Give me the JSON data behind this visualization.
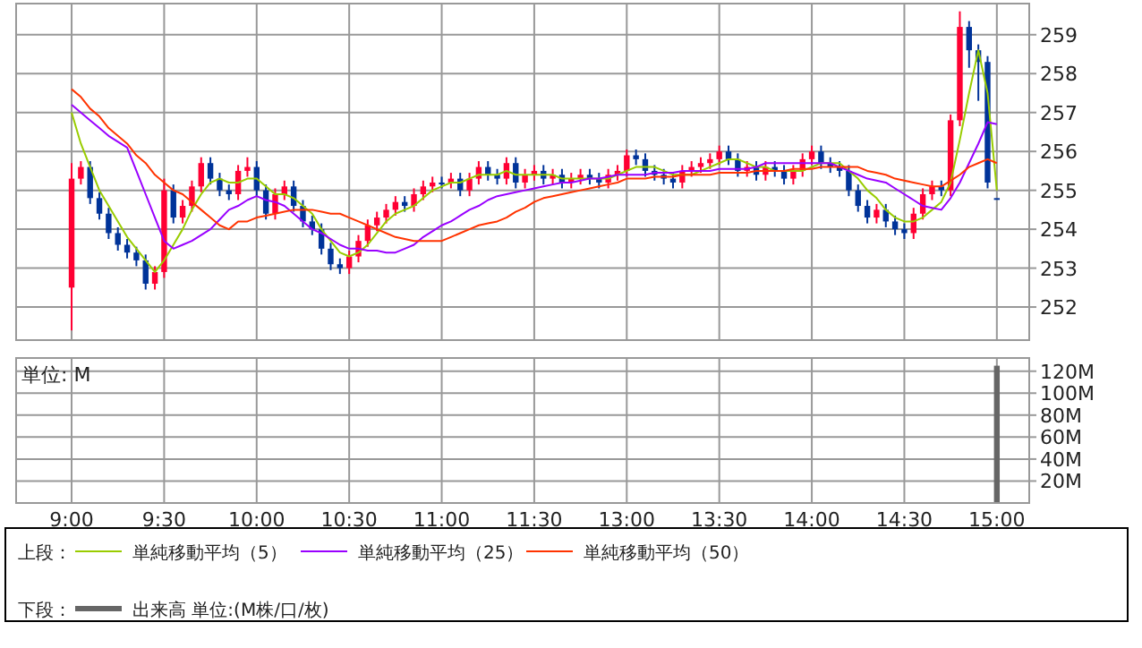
{
  "chart_data": [
    {
      "type": "candlestick",
      "categories": [
        null,
        null,
        null,
        null,
        null,
        null,
        null,
        null,
        null,
        null,
        null,
        null,
        null,
        null,
        null,
        null,
        null,
        null,
        null,
        null,
        null,
        null,
        null,
        null,
        null,
        null,
        null,
        null,
        null,
        null,
        null,
        null,
        null,
        null,
        null,
        null,
        null,
        null,
        null,
        null,
        null,
        null,
        null,
        null,
        null,
        null,
        null,
        null,
        null,
        null,
        null,
        null,
        null,
        null,
        null,
        null,
        null,
        null,
        null,
        null,
        null,
        null,
        null,
        null,
        null,
        null,
        null,
        null,
        null,
        null,
        null,
        null,
        null,
        null,
        null,
        null,
        null,
        null,
        null,
        null,
        null,
        null,
        null,
        null,
        null,
        null,
        null,
        null,
        null,
        null,
        null,
        null,
        null,
        null,
        null,
        null,
        null,
        null,
        null,
        null,
        null
      ],
      "ohlc": [
        [
          252.5,
          255.7,
          251.4,
          255.3
        ],
        [
          255.3,
          255.75,
          255.15,
          255.6
        ],
        [
          255.6,
          255.75,
          254.65,
          254.8
        ],
        [
          254.8,
          254.95,
          254.25,
          254.4
        ],
        [
          254.4,
          254.55,
          253.75,
          253.9
        ],
        [
          253.9,
          254.05,
          253.45,
          253.6
        ],
        [
          253.6,
          253.75,
          253.25,
          253.4
        ],
        [
          253.4,
          253.55,
          253.05,
          253.2
        ],
        [
          253.2,
          253.35,
          252.45,
          252.6
        ],
        [
          252.6,
          253.05,
          252.45,
          252.9
        ],
        [
          252.9,
          255.3,
          252.75,
          255.0
        ],
        [
          255.0,
          255.15,
          254.15,
          254.3
        ],
        [
          254.3,
          254.75,
          254.15,
          254.6
        ],
        [
          254.6,
          255.25,
          254.45,
          255.1
        ],
        [
          255.1,
          255.85,
          254.95,
          255.7
        ],
        [
          255.7,
          255.85,
          255.15,
          255.3
        ],
        [
          255.3,
          255.45,
          254.85,
          255.0
        ],
        [
          255.0,
          255.15,
          254.75,
          254.9
        ],
        [
          254.9,
          255.65,
          254.75,
          255.5
        ],
        [
          255.5,
          255.85,
          255.35,
          255.6
        ],
        [
          255.6,
          255.75,
          254.85,
          255.0
        ],
        [
          255.0,
          255.15,
          254.25,
          254.4
        ],
        [
          254.4,
          255.05,
          254.25,
          254.9
        ],
        [
          254.9,
          255.25,
          254.75,
          255.1
        ],
        [
          255.1,
          255.25,
          254.45,
          254.6
        ],
        [
          254.6,
          254.75,
          254.05,
          254.2
        ],
        [
          254.2,
          254.35,
          253.85,
          254.0
        ],
        [
          254.0,
          254.15,
          253.35,
          253.5
        ],
        [
          253.5,
          253.65,
          252.95,
          253.1
        ],
        [
          253.1,
          253.25,
          252.85,
          253.0
        ],
        [
          253.0,
          253.45,
          252.85,
          253.3
        ],
        [
          253.3,
          253.85,
          253.15,
          253.7
        ],
        [
          253.7,
          254.25,
          253.55,
          254.1
        ],
        [
          254.1,
          254.45,
          253.95,
          254.3
        ],
        [
          254.3,
          254.65,
          254.15,
          254.5
        ],
        [
          254.5,
          254.85,
          254.35,
          254.7
        ],
        [
          254.7,
          254.85,
          254.45,
          254.6
        ],
        [
          254.6,
          255.05,
          254.45,
          254.9
        ],
        [
          254.9,
          255.25,
          254.75,
          255.1
        ],
        [
          255.1,
          255.35,
          254.95,
          255.2
        ],
        [
          255.2,
          255.35,
          255.05,
          255.2
        ],
        [
          255.2,
          255.45,
          255.05,
          255.3
        ],
        [
          255.3,
          255.45,
          254.85,
          255.0
        ],
        [
          255.0,
          255.45,
          254.85,
          255.3
        ],
        [
          255.3,
          255.75,
          255.15,
          255.6
        ],
        [
          255.6,
          255.75,
          255.25,
          255.4
        ],
        [
          255.4,
          255.55,
          255.15,
          255.3
        ],
        [
          255.3,
          255.85,
          255.15,
          255.7
        ],
        [
          255.7,
          255.85,
          255.05,
          255.2
        ],
        [
          255.2,
          255.55,
          255.05,
          255.4
        ],
        [
          255.4,
          255.65,
          255.25,
          255.5
        ],
        [
          255.5,
          255.65,
          255.15,
          255.3
        ],
        [
          255.3,
          255.55,
          255.15,
          255.4
        ],
        [
          255.4,
          255.55,
          255.05,
          255.2
        ],
        [
          255.2,
          255.45,
          255.05,
          255.3
        ],
        [
          255.3,
          255.55,
          255.15,
          255.4
        ],
        [
          255.4,
          255.55,
          255.15,
          255.3
        ],
        [
          255.3,
          255.45,
          255.05,
          255.2
        ],
        [
          255.2,
          255.55,
          255.05,
          255.4
        ],
        [
          255.4,
          255.65,
          255.25,
          255.5
        ],
        [
          255.5,
          256.05,
          255.35,
          255.9
        ],
        [
          255.9,
          256.05,
          255.65,
          255.8
        ],
        [
          255.8,
          255.95,
          255.35,
          255.5
        ],
        [
          255.5,
          255.65,
          255.25,
          255.4
        ],
        [
          255.4,
          255.55,
          255.15,
          255.3
        ],
        [
          255.3,
          255.45,
          255.05,
          255.2
        ],
        [
          255.2,
          255.65,
          255.05,
          255.5
        ],
        [
          255.5,
          255.75,
          255.35,
          255.6
        ],
        [
          255.6,
          255.85,
          255.45,
          255.7
        ],
        [
          255.7,
          255.95,
          255.55,
          255.8
        ],
        [
          255.8,
          256.15,
          255.65,
          256.0
        ],
        [
          256.0,
          256.15,
          255.65,
          255.8
        ],
        [
          255.8,
          255.95,
          255.35,
          255.5
        ],
        [
          255.5,
          255.75,
          255.35,
          255.6
        ],
        [
          255.6,
          255.75,
          255.25,
          255.4
        ],
        [
          255.4,
          255.75,
          255.25,
          255.6
        ],
        [
          255.6,
          255.75,
          255.35,
          255.5
        ],
        [
          255.5,
          255.65,
          255.15,
          255.3
        ],
        [
          255.3,
          255.65,
          255.15,
          255.5
        ],
        [
          255.5,
          255.95,
          255.35,
          255.8
        ],
        [
          255.8,
          256.15,
          255.65,
          256.0
        ],
        [
          256.0,
          256.15,
          255.55,
          255.7
        ],
        [
          255.7,
          255.85,
          255.45,
          255.6
        ],
        [
          255.6,
          255.75,
          255.35,
          255.5
        ],
        [
          255.5,
          255.65,
          254.85,
          255.0
        ],
        [
          255.0,
          255.15,
          254.45,
          254.6
        ],
        [
          254.6,
          254.75,
          254.15,
          254.3
        ],
        [
          254.3,
          254.65,
          254.15,
          254.5
        ],
        [
          254.5,
          254.65,
          254.05,
          254.2
        ],
        [
          254.2,
          254.35,
          253.85,
          254.0
        ],
        [
          254.0,
          254.15,
          253.75,
          253.9
        ],
        [
          253.9,
          254.55,
          253.75,
          254.4
        ],
        [
          254.4,
          255.05,
          254.25,
          254.9
        ],
        [
          254.9,
          255.25,
          254.75,
          255.1
        ],
        [
          255.1,
          255.25,
          254.85,
          255.0
        ],
        [
          255.0,
          256.95,
          254.85,
          256.8
        ],
        [
          256.8,
          259.6,
          256.65,
          259.2
        ],
        [
          259.2,
          259.35,
          258.15,
          258.6
        ],
        [
          258.6,
          258.75,
          257.3,
          258.3
        ],
        [
          258.3,
          258.45,
          255.05,
          255.2
        ],
        [
          254.8,
          254.8,
          254.8,
          254.8
        ]
      ],
      "colors": [
        "#ff0033",
        "#ff0033",
        "#003399",
        "#003399",
        "#003399",
        "#003399",
        "#003399",
        "#003399",
        "#003399",
        "#ff0033",
        "#ff0033",
        "#003399",
        "#ff0033",
        "#ff0033",
        "#ff0033",
        "#003399",
        "#003399",
        "#003399",
        "#ff0033",
        "#ff0033",
        "#003399",
        "#003399",
        "#ff0033",
        "#ff0033",
        "#003399",
        "#003399",
        "#003399",
        "#003399",
        "#003399",
        "#003399",
        "#ff0033",
        "#ff0033",
        "#ff0033",
        "#ff0033",
        "#ff0033",
        "#ff0033",
        "#003399",
        "#ff0033",
        "#ff0033",
        "#ff0033",
        "#003399",
        "#ff0033",
        "#003399",
        "#ff0033",
        "#ff0033",
        "#003399",
        "#003399",
        "#ff0033",
        "#003399",
        "#ff0033",
        "#ff0033",
        "#003399",
        "#ff0033",
        "#003399",
        "#ff0033",
        "#ff0033",
        "#003399",
        "#003399",
        "#ff0033",
        "#ff0033",
        "#ff0033",
        "#003399",
        "#003399",
        "#003399",
        "#003399",
        "#003399",
        "#ff0033",
        "#ff0033",
        "#ff0033",
        "#ff0033",
        "#ff0033",
        "#003399",
        "#003399",
        "#ff0033",
        "#003399",
        "#ff0033",
        "#003399",
        "#003399",
        "#ff0033",
        "#ff0033",
        "#ff0033",
        "#003399",
        "#003399",
        "#003399",
        "#003399",
        "#003399",
        "#003399",
        "#ff0033",
        "#003399",
        "#003399",
        "#003399",
        "#ff0033",
        "#ff0033",
        "#ff0033",
        "#003399",
        "#ff0033",
        "#ff0033",
        "#003399",
        "#003399",
        "#003399",
        "#003399"
      ],
      "series": [
        {
          "name": "単純移動平均（5）",
          "type": "line",
          "color": "#99cc00",
          "values": [
            257.0,
            256.2,
            255.6,
            255.0,
            254.6,
            254.2,
            253.8,
            253.5,
            253.2,
            252.9,
            253.2,
            253.6,
            254.0,
            254.5,
            254.9,
            255.2,
            255.3,
            255.2,
            255.2,
            255.3,
            255.3,
            255.1,
            254.9,
            254.9,
            254.8,
            254.6,
            254.4,
            254.0,
            253.7,
            253.4,
            253.3,
            253.4,
            253.6,
            253.9,
            254.2,
            254.4,
            254.5,
            254.6,
            254.8,
            255.0,
            255.1,
            255.2,
            255.2,
            255.3,
            255.4,
            255.4,
            255.4,
            255.5,
            255.4,
            255.4,
            255.4,
            255.4,
            255.4,
            255.3,
            255.3,
            255.3,
            255.3,
            255.3,
            255.3,
            255.4,
            255.5,
            255.6,
            255.6,
            255.6,
            255.5,
            255.4,
            255.4,
            255.4,
            255.5,
            255.6,
            255.7,
            255.8,
            255.8,
            255.7,
            255.6,
            255.6,
            255.5,
            255.5,
            255.5,
            255.5,
            255.6,
            255.7,
            255.7,
            255.7,
            255.5,
            255.3,
            255.0,
            254.8,
            254.5,
            254.3,
            254.2,
            254.2,
            254.3,
            254.5,
            254.7,
            255.2,
            256.3,
            257.5,
            258.6,
            257.5,
            255.0
          ]
        },
        {
          "name": "単純移動平均（25）",
          "type": "line",
          "color": "#9900ff",
          "values": [
            257.2,
            257.0,
            256.8,
            256.6,
            256.4,
            256.25,
            256.1,
            255.5,
            254.9,
            254.3,
            253.7,
            253.5,
            253.6,
            253.7,
            253.85,
            254.0,
            254.25,
            254.5,
            254.6,
            254.75,
            254.85,
            254.75,
            254.7,
            254.6,
            254.4,
            254.2,
            254.0,
            253.9,
            253.75,
            253.6,
            253.5,
            253.5,
            253.45,
            253.45,
            253.4,
            253.4,
            253.5,
            253.6,
            253.8,
            253.95,
            254.1,
            254.2,
            254.35,
            254.5,
            254.6,
            254.75,
            254.85,
            254.9,
            254.95,
            255.0,
            255.05,
            255.1,
            255.15,
            255.2,
            255.2,
            255.25,
            255.3,
            255.3,
            255.35,
            255.4,
            255.4,
            255.4,
            255.4,
            255.45,
            255.45,
            255.45,
            255.5,
            255.5,
            255.5,
            255.5,
            255.55,
            255.55,
            255.55,
            255.55,
            255.6,
            255.7,
            255.7,
            255.7,
            255.7,
            255.7,
            255.7,
            255.7,
            255.7,
            255.6,
            255.5,
            255.4,
            255.3,
            255.25,
            255.2,
            255.05,
            254.9,
            254.75,
            254.6,
            254.55,
            254.5,
            254.8,
            255.2,
            255.7,
            256.2,
            256.75,
            256.7
          ]
        },
        {
          "name": "単純移動平均（50）",
          "type": "line",
          "color": "#ff3300",
          "values": [
            257.6,
            257.4,
            257.1,
            256.9,
            256.6,
            256.4,
            256.2,
            255.9,
            255.7,
            255.4,
            255.2,
            255.0,
            254.9,
            254.7,
            254.5,
            254.3,
            254.1,
            254.0,
            254.2,
            254.2,
            254.3,
            254.35,
            254.4,
            254.45,
            254.5,
            254.5,
            254.5,
            254.45,
            254.4,
            254.4,
            254.3,
            254.2,
            254.1,
            254.0,
            253.9,
            253.8,
            253.75,
            253.7,
            253.7,
            253.7,
            253.7,
            253.8,
            253.9,
            254.0,
            254.1,
            254.15,
            254.2,
            254.3,
            254.45,
            254.55,
            254.7,
            254.8,
            254.85,
            254.9,
            254.95,
            255.0,
            255.05,
            255.1,
            255.15,
            255.2,
            255.3,
            255.3,
            255.3,
            255.35,
            255.35,
            255.35,
            255.4,
            255.4,
            255.4,
            255.4,
            255.45,
            255.45,
            255.45,
            255.45,
            255.5,
            255.5,
            255.5,
            255.5,
            255.55,
            255.55,
            255.55,
            255.6,
            255.6,
            255.6,
            255.6,
            255.6,
            255.5,
            255.45,
            255.4,
            255.3,
            255.25,
            255.2,
            255.15,
            255.1,
            255.1,
            255.25,
            255.4,
            255.6,
            255.7,
            255.8,
            255.7
          ]
        }
      ],
      "ylim": [
        251.15,
        259.8
      ],
      "yticks": [
        252,
        253,
        254,
        255,
        256,
        257,
        258,
        259
      ],
      "grid": true,
      "tick_labels": "y",
      "legend": "bottom",
      "legend_title": "上段："
    },
    {
      "type": "bar",
      "categories": [
        "9:00",
        null,
        null,
        null,
        null,
        null,
        null,
        null,
        null,
        null,
        "9:30",
        null,
        null,
        null,
        null,
        null,
        null,
        null,
        null,
        null,
        "10:00",
        null,
        null,
        null,
        null,
        null,
        null,
        null,
        null,
        null,
        "10:30",
        null,
        null,
        null,
        null,
        null,
        null,
        null,
        null,
        null,
        "11:00",
        null,
        null,
        null,
        null,
        null,
        null,
        null,
        null,
        null,
        "11:30",
        null,
        null,
        null,
        null,
        null,
        null,
        null,
        null,
        null,
        "13:00",
        null,
        null,
        null,
        null,
        null,
        null,
        null,
        null,
        null,
        "13:30",
        null,
        null,
        null,
        null,
        null,
        null,
        null,
        null,
        null,
        "14:00",
        null,
        null,
        null,
        null,
        null,
        null,
        null,
        null,
        null,
        "14:30",
        null,
        null,
        null,
        null,
        null,
        null,
        null,
        null,
        null,
        "15:00"
      ],
      "series": [
        {
          "name": "出来高 単位:(M株/口/枚)",
          "color": "#666666",
          "values": [
            0,
            0,
            0,
            0,
            0,
            0,
            0,
            0,
            0,
            0,
            0,
            0,
            0,
            0,
            0,
            0,
            0,
            0,
            0,
            0,
            0,
            0,
            0,
            0,
            0,
            0,
            0,
            0,
            0,
            0,
            0,
            0,
            0,
            0,
            0,
            0,
            0,
            0,
            0,
            0,
            0,
            0,
            0,
            0,
            0,
            0,
            0,
            0,
            0,
            0,
            0,
            0,
            0,
            0,
            0,
            0,
            0,
            0,
            0,
            0,
            0,
            0,
            0,
            0,
            0,
            0,
            0,
            0,
            0,
            0,
            0,
            0,
            0,
            0,
            0,
            0,
            0,
            0,
            0,
            0,
            0,
            0,
            0,
            0,
            0,
            0,
            0,
            0,
            0,
            0,
            0,
            0,
            0,
            0,
            0,
            0,
            0,
            0,
            0,
            0,
            125
          ]
        }
      ],
      "ylim": [
        0,
        132
      ],
      "yticks": [
        {
          "value": 20,
          "label": "20M"
        },
        {
          "value": 40,
          "label": "40M"
        },
        {
          "value": 60,
          "label": "60M"
        },
        {
          "value": 80,
          "label": "80M"
        },
        {
          "value": 100,
          "label": "100M"
        },
        {
          "value": 120,
          "label": "120M"
        }
      ],
      "grid": true,
      "annotations": [
        "単位: M"
      ],
      "legend": "bottom",
      "legend_title": "下段："
    }
  ]
}
